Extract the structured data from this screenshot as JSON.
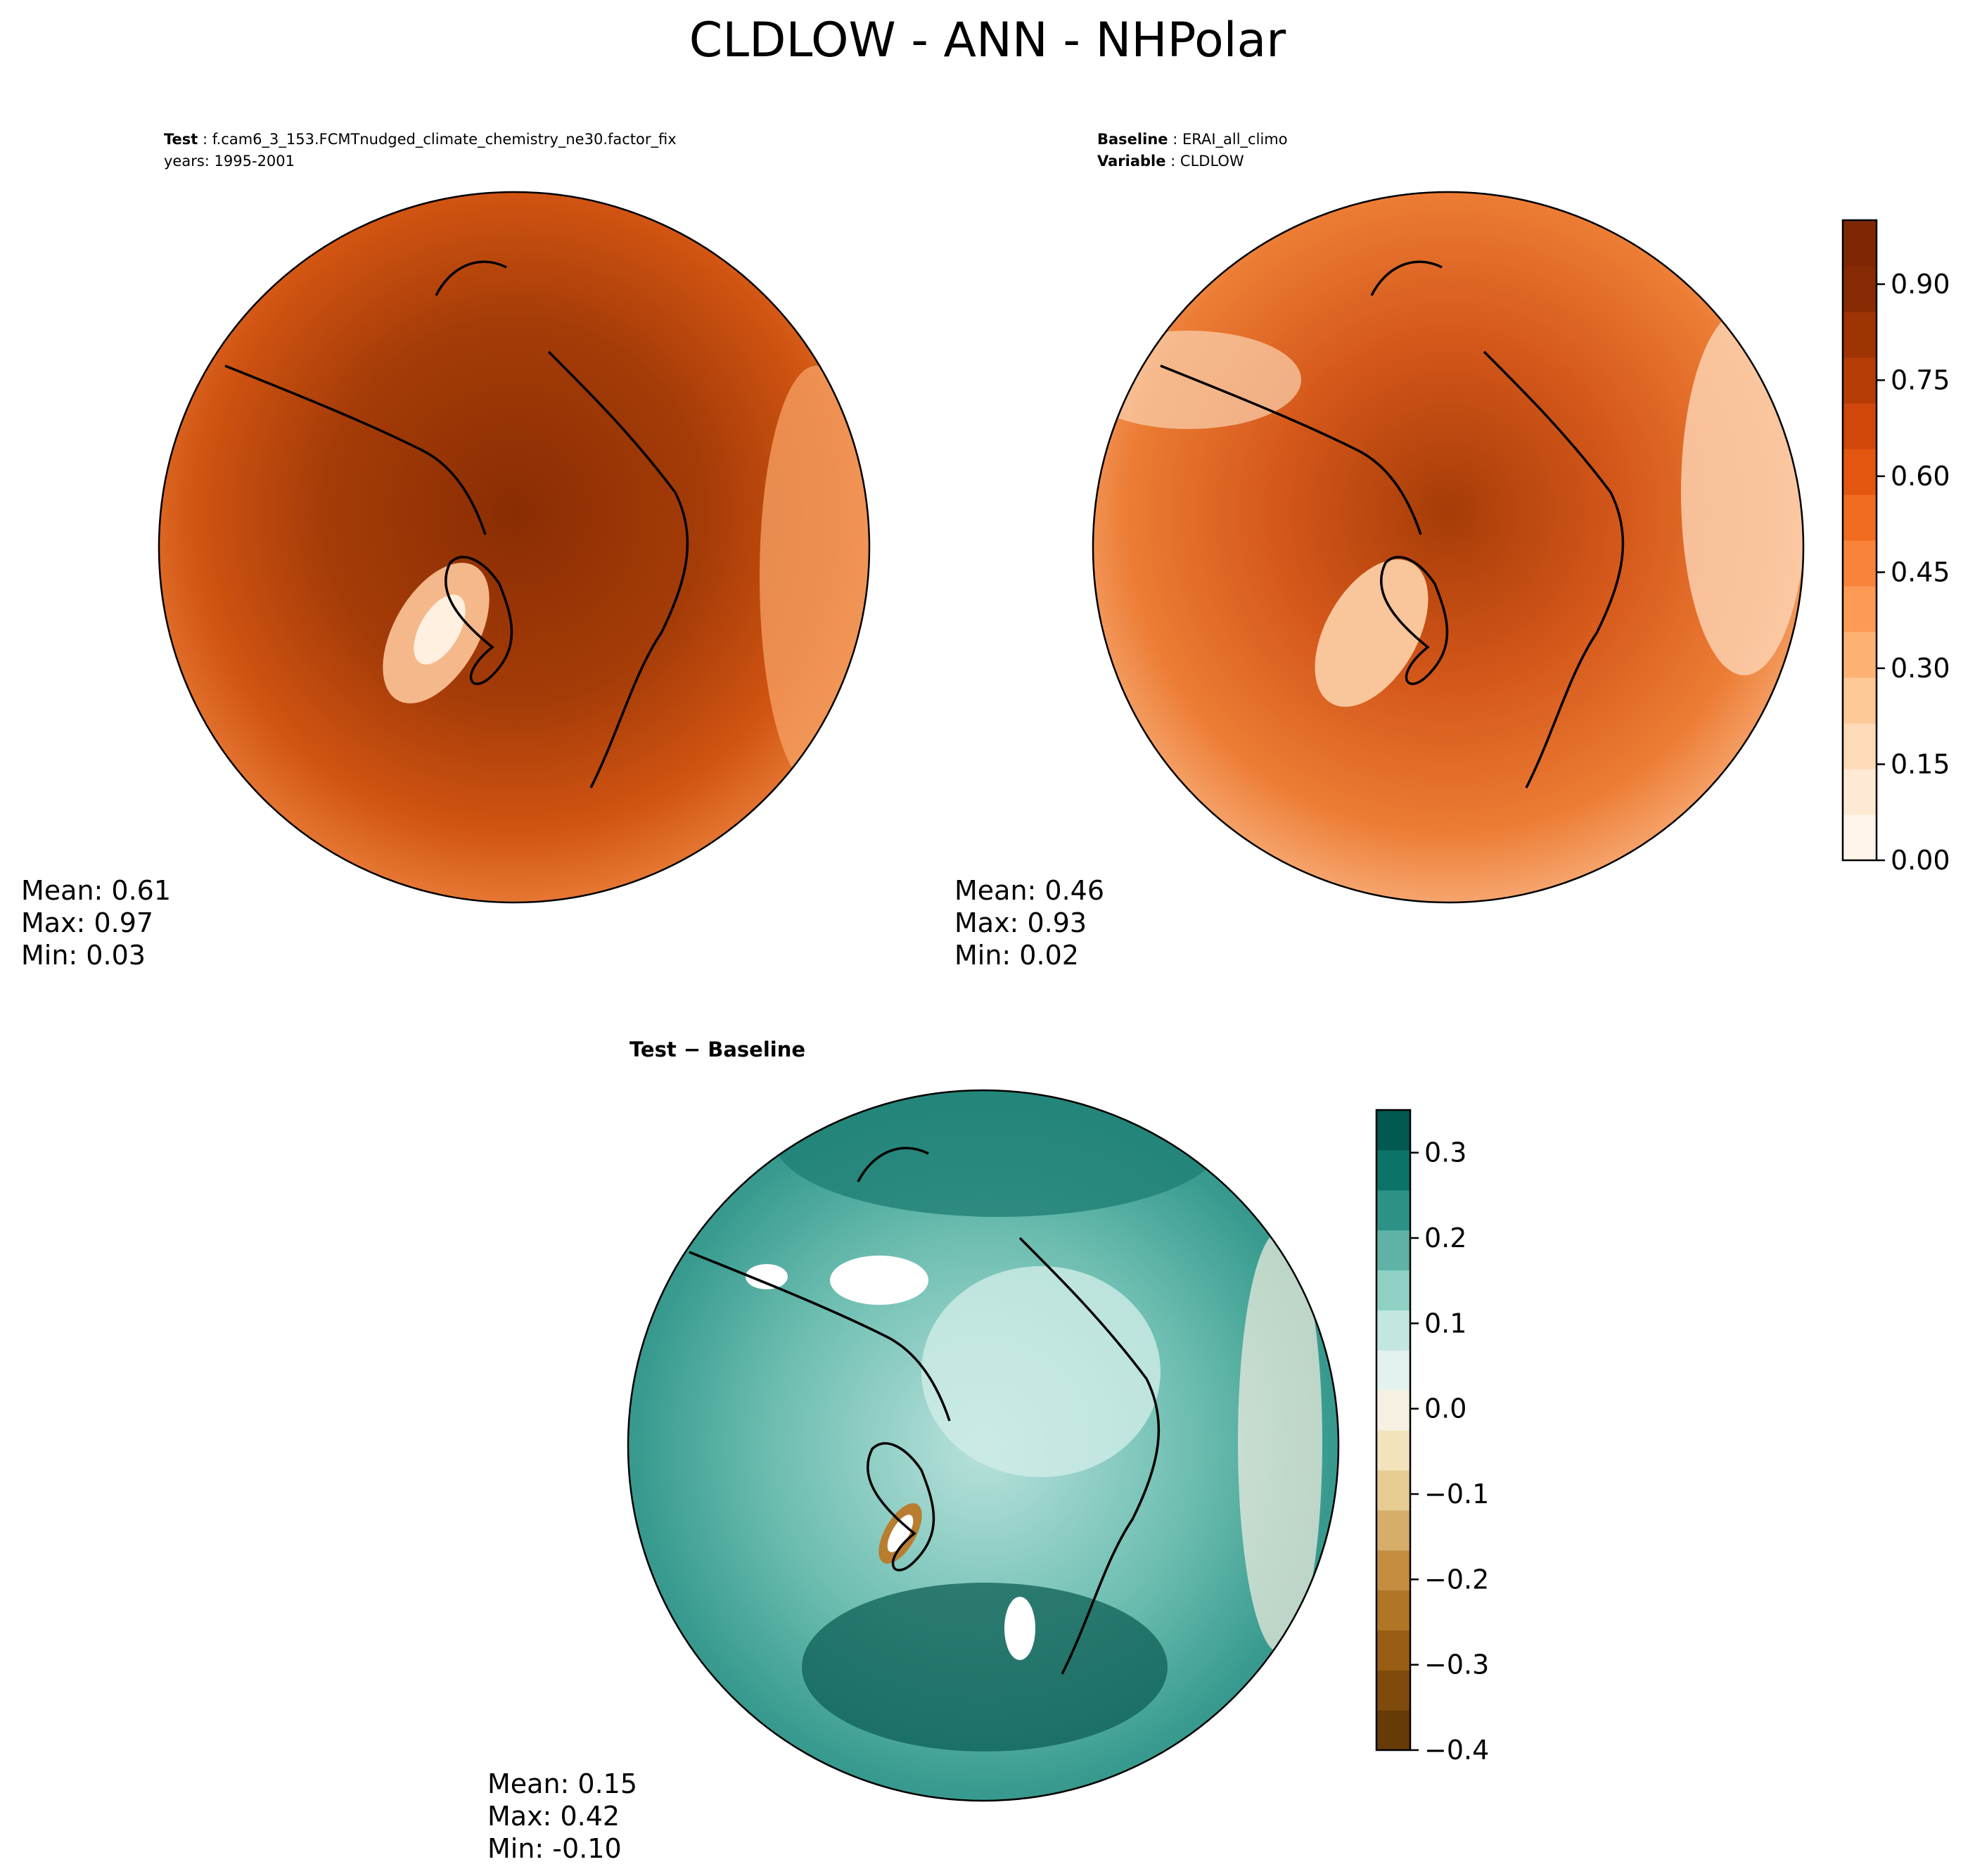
{
  "figure": {
    "title": "CLDLOW - ANN - NHPolar"
  },
  "colors": {
    "land_outline": "#000000",
    "frame": "#000000",
    "test_base": "#a83d0c",
    "baseline_base": "#d2541a",
    "diff_base": "#5eb3a6"
  },
  "chart_data": [
    {
      "type": "heatmap",
      "id": "test",
      "projection": "north-polar-stereographic",
      "title_label": "Test",
      "title_value": "f.cam6_3_153.FCMTnudged_climate_chemistry_ne30.factor_fix",
      "subtitle": "years: 1995-2001",
      "stats": {
        "mean": "Mean:  0.61",
        "max": "Max:  0.97",
        "min": "Min:  0.03"
      },
      "mean": 0.61,
      "max": 0.97,
      "min": 0.03,
      "colormap": "Oranges",
      "shared_colorbar": true
    },
    {
      "type": "heatmap",
      "id": "baseline",
      "projection": "north-polar-stereographic",
      "title_label": "Baseline",
      "title_value": "ERAI_all_climo",
      "subtitle_label": "Variable",
      "subtitle_value": "CLDLOW",
      "stats": {
        "mean": "Mean:  0.46",
        "max": "Max:  0.93",
        "min": "Min:  0.02"
      },
      "mean": 0.46,
      "max": 0.93,
      "min": 0.02,
      "colormap": "Oranges",
      "colorbar": {
        "range": [
          0.0,
          1.0
        ],
        "ticks": [
          0.0,
          0.15,
          0.3,
          0.45,
          0.6,
          0.75,
          0.9
        ],
        "tick_labels": [
          "0.00",
          "0.15",
          "0.30",
          "0.45",
          "0.60",
          "0.75",
          "0.90"
        ],
        "colors": [
          "#fff5eb",
          "#fee9d4",
          "#fddbb8",
          "#fdc997",
          "#fdb274",
          "#fd9a55",
          "#f98439",
          "#f16c20",
          "#e35610",
          "#cf470b",
          "#b63c06",
          "#9e3303",
          "#852a02",
          "#7f2704"
        ]
      }
    },
    {
      "type": "heatmap",
      "id": "difference",
      "projection": "north-polar-stereographic",
      "title": "Test − Baseline",
      "stats": {
        "mean": "Mean:  0.15",
        "max": "Max:  0.42",
        "min": "Min: -0.10"
      },
      "mean": 0.15,
      "max": 0.42,
      "min": -0.1,
      "colormap": "BrBG",
      "colorbar": {
        "range": [
          -0.4,
          0.35
        ],
        "ticks": [
          -0.4,
          -0.3,
          -0.2,
          -0.1,
          0.0,
          0.1,
          0.2,
          0.3
        ],
        "tick_labels": [
          "−0.4",
          "−0.3",
          "−0.2",
          "−0.1",
          "0.0",
          "0.1",
          "0.2",
          "0.3"
        ],
        "colors": [
          "#663b07",
          "#7e4b0c",
          "#995e14",
          "#b07525",
          "#c48d3f",
          "#d6ae6a",
          "#e6cc93",
          "#f2e3bc",
          "#f5f0e1",
          "#e3f1ef",
          "#c2e6e0",
          "#8fd1c5",
          "#5eb3a6",
          "#2e9186",
          "#0c7369",
          "#01594f"
        ]
      }
    }
  ]
}
